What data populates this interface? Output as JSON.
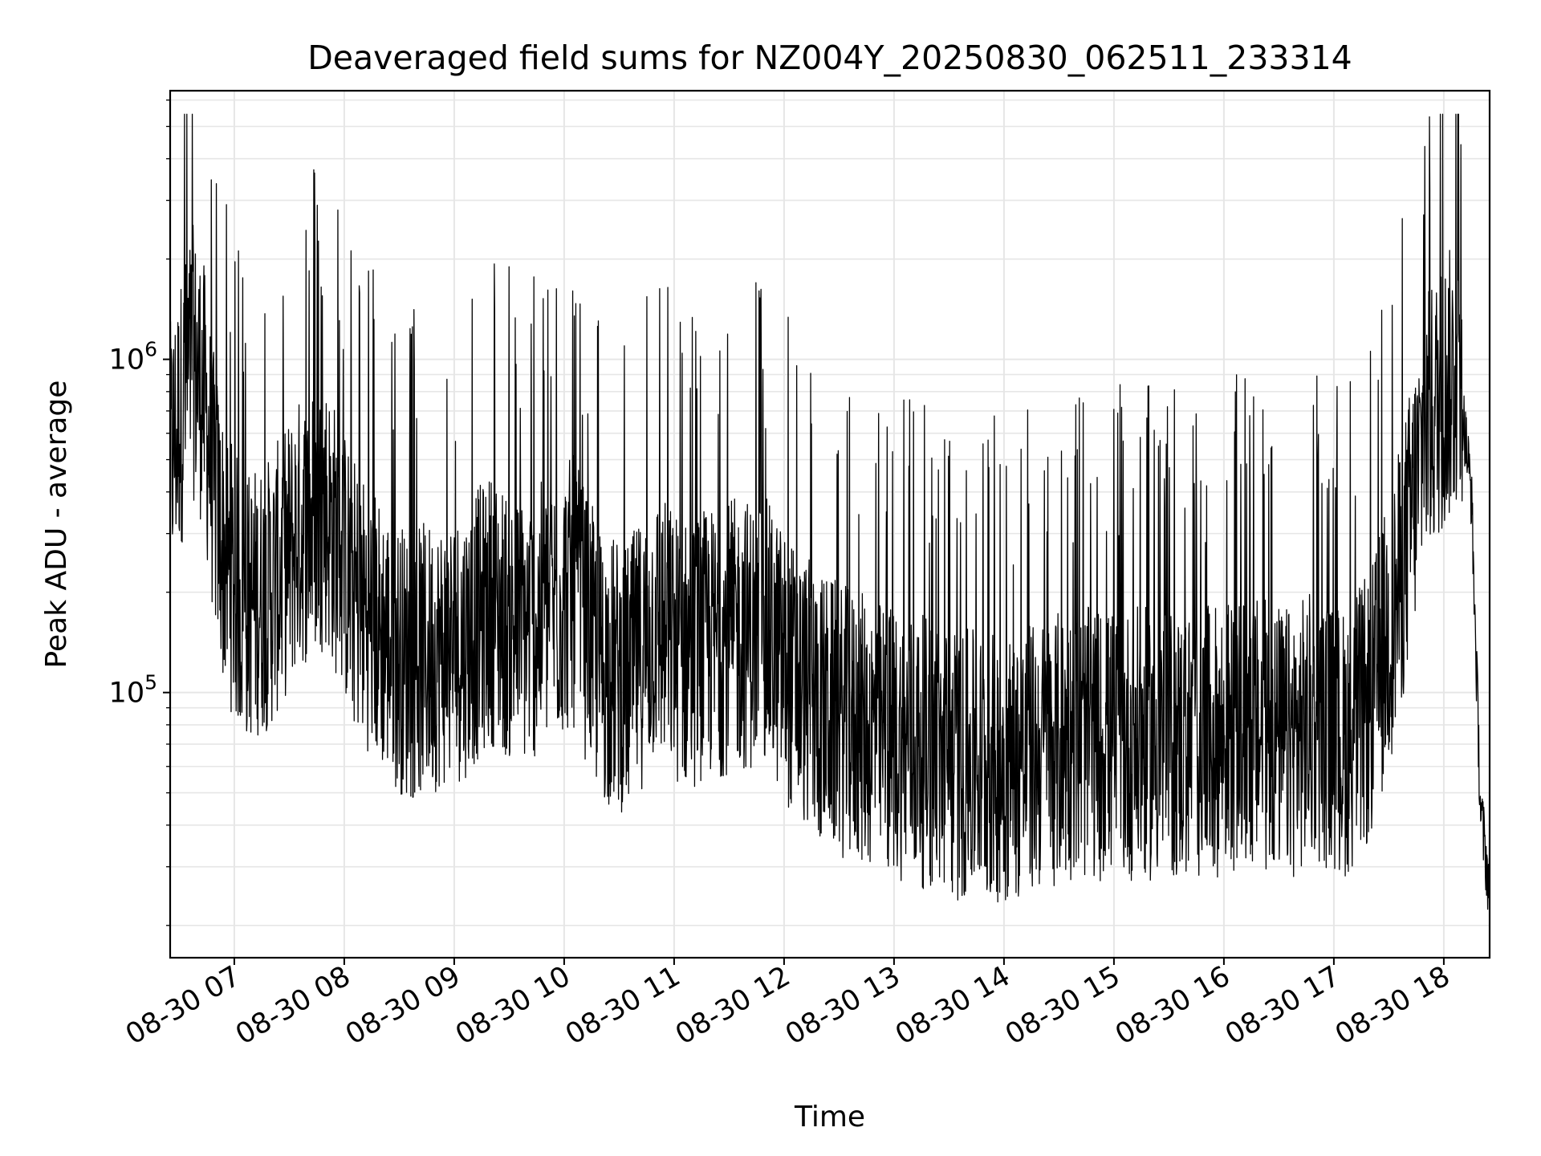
{
  "chart_data": {
    "type": "line",
    "title": "Deaveraged field sums for NZ004Y_20250830_062511_233314",
    "xlabel": "Time",
    "ylabel": "Peak ADU - average",
    "yscale": "log",
    "ylim": [
      16000,
      6400000
    ],
    "xlim": [
      "2025-08-30 06:25",
      "2025-08-30 18:25"
    ],
    "grid": true,
    "line_color": "#000000",
    "grid_color": "#e6e6e6",
    "x_ticks": [
      "08-30 07",
      "08-30 08",
      "08-30 09",
      "08-30 10",
      "08-30 11",
      "08-30 12",
      "08-30 13",
      "08-30 14",
      "08-30 15",
      "08-30 16",
      "08-30 17",
      "08-30 18"
    ],
    "x_tick_values": [
      "2025-08-30 07:00",
      "2025-08-30 08:00",
      "2025-08-30 09:00",
      "2025-08-30 10:00",
      "2025-08-30 11:00",
      "2025-08-30 12:00",
      "2025-08-30 13:00",
      "2025-08-30 14:00",
      "2025-08-30 15:00",
      "2025-08-30 16:00",
      "2025-08-30 17:00",
      "2025-08-30 18:00"
    ],
    "y_ticks": [
      {
        "value": 100000,
        "base": "10",
        "exp": "5"
      },
      {
        "value": 1000000,
        "base": "10",
        "exp": "6"
      }
    ],
    "series": [
      {
        "x": [
          "2025-08-30 06:25",
          "2025-08-30 06:31",
          "2025-08-30 06:37",
          "2025-08-30 06:43",
          "2025-08-30 06:49",
          "2025-08-30 06:55",
          "2025-08-30 07:05",
          "2025-08-30 07:20",
          "2025-08-30 07:35",
          "2025-08-30 07:50",
          "2025-08-30 08:05",
          "2025-08-30 08:20",
          "2025-08-30 08:35",
          "2025-08-30 08:50",
          "2025-08-30 09:05",
          "2025-08-30 09:20",
          "2025-08-30 09:35",
          "2025-08-30 09:50",
          "2025-08-30 10:05",
          "2025-08-30 10:20",
          "2025-08-30 10:35",
          "2025-08-30 10:50",
          "2025-08-30 11:05",
          "2025-08-30 11:20",
          "2025-08-30 11:35",
          "2025-08-30 11:50",
          "2025-08-30 12:05",
          "2025-08-30 12:20",
          "2025-08-30 12:35",
          "2025-08-30 12:50",
          "2025-08-30 13:05",
          "2025-08-30 13:20",
          "2025-08-30 13:35",
          "2025-08-30 13:50",
          "2025-08-30 14:05",
          "2025-08-30 14:20",
          "2025-08-30 14:35",
          "2025-08-30 14:50",
          "2025-08-30 15:05",
          "2025-08-30 15:20",
          "2025-08-30 15:35",
          "2025-08-30 15:50",
          "2025-08-30 16:05",
          "2025-08-30 16:20",
          "2025-08-30 16:35",
          "2025-08-30 16:50",
          "2025-08-30 17:05",
          "2025-08-30 17:20",
          "2025-08-30 17:35",
          "2025-08-30 17:50",
          "2025-08-30 18:00",
          "2025-08-30 18:08",
          "2025-08-30 18:15",
          "2025-08-30 18:20",
          "2025-08-30 18:25"
        ],
        "y": [
          500000,
          700000,
          1000000,
          800000,
          400000,
          250000,
          180000,
          200000,
          300000,
          350000,
          200000,
          150000,
          120000,
          130000,
          140000,
          180000,
          150000,
          170000,
          200000,
          120000,
          110000,
          160000,
          130000,
          140000,
          150000,
          150000,
          110000,
          90000,
          80000,
          75000,
          70000,
          65000,
          60000,
          60000,
          60000,
          65000,
          70000,
          70000,
          70000,
          70000,
          70000,
          70000,
          75000,
          75000,
          70000,
          80000,
          70000,
          90000,
          200000,
          600000,
          800000,
          900000,
          400000,
          45000,
          25000
        ]
      }
    ]
  }
}
